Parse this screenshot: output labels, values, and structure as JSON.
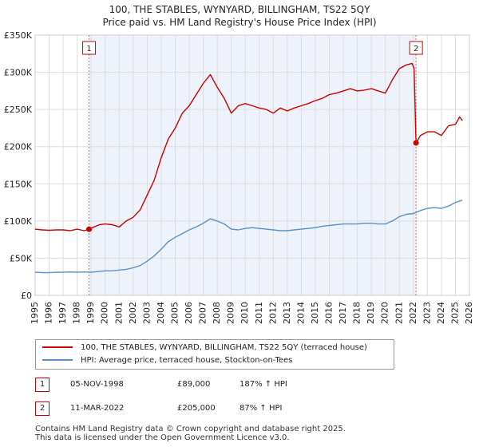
{
  "title_line1": "100, THE STABLES, WYNYARD, BILLINGHAM, TS22 5QY",
  "title_line2": "Price paid vs. HM Land Registry's House Price Index (HPI)",
  "chart_data": {
    "type": "line",
    "title": "100, THE STABLES, WYNYARD, BILLINGHAM, TS22 5QY — Price paid vs. HM Land Registry's House Price Index (HPI)",
    "xlim": [
      1995,
      2026
    ],
    "ylim": [
      0,
      350000
    ],
    "x_ticks": [
      "1995",
      "1996",
      "1997",
      "1998",
      "1999",
      "2000",
      "2001",
      "2002",
      "2003",
      "2004",
      "2005",
      "2006",
      "2007",
      "2008",
      "2009",
      "2010",
      "2011",
      "2012",
      "2013",
      "2014",
      "2015",
      "2016",
      "2017",
      "2018",
      "2019",
      "2020",
      "2021",
      "2022",
      "2023",
      "2024",
      "2025",
      "2026"
    ],
    "y_ticks": [
      {
        "value": 0,
        "label": "£0"
      },
      {
        "value": 50000,
        "label": "£50K"
      },
      {
        "value": 100000,
        "label": "£100K"
      },
      {
        "value": 150000,
        "label": "£150K"
      },
      {
        "value": 200000,
        "label": "£200K"
      },
      {
        "value": 250000,
        "label": "£250K"
      },
      {
        "value": 300000,
        "label": "£300K"
      },
      {
        "value": 350000,
        "label": "£350K"
      }
    ],
    "shade_range": [
      1998.85,
      2022.19
    ],
    "series": [
      {
        "name": "100, THE STABLES, WYNYARD, BILLINGHAM, TS22 5QY (terraced house)",
        "color": "#cc0000",
        "points": [
          [
            1995.0,
            89000
          ],
          [
            1995.5,
            88000
          ],
          [
            1996.0,
            87500
          ],
          [
            1996.5,
            88000
          ],
          [
            1997.0,
            88000
          ],
          [
            1997.5,
            87000
          ],
          [
            1998.0,
            89000
          ],
          [
            1998.5,
            87000
          ],
          [
            1998.85,
            89000
          ],
          [
            1999.2,
            92000
          ],
          [
            1999.6,
            95000
          ],
          [
            2000.0,
            96000
          ],
          [
            2000.5,
            95000
          ],
          [
            2001.0,
            92000
          ],
          [
            2001.5,
            100000
          ],
          [
            2002.0,
            105000
          ],
          [
            2002.5,
            115000
          ],
          [
            2003.0,
            135000
          ],
          [
            2003.5,
            155000
          ],
          [
            2004.0,
            185000
          ],
          [
            2004.5,
            210000
          ],
          [
            2005.0,
            225000
          ],
          [
            2005.5,
            245000
          ],
          [
            2006.0,
            255000
          ],
          [
            2006.5,
            270000
          ],
          [
            2007.0,
            285000
          ],
          [
            2007.5,
            297000
          ],
          [
            2008.0,
            280000
          ],
          [
            2008.5,
            265000
          ],
          [
            2009.0,
            245000
          ],
          [
            2009.5,
            255000
          ],
          [
            2010.0,
            258000
          ],
          [
            2010.5,
            255000
          ],
          [
            2011.0,
            252000
          ],
          [
            2011.5,
            250000
          ],
          [
            2012.0,
            245000
          ],
          [
            2012.5,
            252000
          ],
          [
            2013.0,
            248000
          ],
          [
            2013.5,
            252000
          ],
          [
            2014.0,
            255000
          ],
          [
            2014.5,
            258000
          ],
          [
            2015.0,
            262000
          ],
          [
            2015.5,
            265000
          ],
          [
            2016.0,
            270000
          ],
          [
            2016.5,
            272000
          ],
          [
            2017.0,
            275000
          ],
          [
            2017.5,
            278000
          ],
          [
            2018.0,
            275000
          ],
          [
            2018.5,
            276000
          ],
          [
            2019.0,
            278000
          ],
          [
            2019.5,
            275000
          ],
          [
            2020.0,
            272000
          ],
          [
            2020.5,
            290000
          ],
          [
            2021.0,
            305000
          ],
          [
            2021.5,
            310000
          ],
          [
            2021.9,
            312000
          ],
          [
            2022.05,
            305000
          ],
          [
            2022.19,
            205000
          ],
          [
            2022.5,
            215000
          ],
          [
            2023.0,
            220000
          ],
          [
            2023.5,
            220000
          ],
          [
            2024.0,
            215000
          ],
          [
            2024.5,
            228000
          ],
          [
            2025.0,
            230000
          ],
          [
            2025.3,
            240000
          ],
          [
            2025.5,
            235000
          ]
        ]
      },
      {
        "name": "HPI: Average price, terraced house, Stockton-on-Tees",
        "color": "#5b8fc7",
        "points": [
          [
            1995.0,
            31000
          ],
          [
            1995.5,
            30500
          ],
          [
            1996.0,
            30500
          ],
          [
            1996.5,
            31000
          ],
          [
            1997.0,
            31000
          ],
          [
            1997.5,
            31500
          ],
          [
            1998.0,
            31000
          ],
          [
            1998.5,
            31500
          ],
          [
            1999.0,
            31000
          ],
          [
            1999.5,
            32000
          ],
          [
            2000.0,
            33000
          ],
          [
            2000.5,
            33000
          ],
          [
            2001.0,
            34000
          ],
          [
            2001.5,
            35000
          ],
          [
            2002.0,
            37000
          ],
          [
            2002.5,
            40000
          ],
          [
            2003.0,
            46000
          ],
          [
            2003.5,
            53000
          ],
          [
            2004.0,
            62000
          ],
          [
            2004.5,
            72000
          ],
          [
            2005.0,
            78000
          ],
          [
            2005.5,
            83000
          ],
          [
            2006.0,
            88000
          ],
          [
            2006.5,
            92000
          ],
          [
            2007.0,
            97000
          ],
          [
            2007.5,
            103000
          ],
          [
            2008.0,
            100000
          ],
          [
            2008.5,
            96000
          ],
          [
            2009.0,
            89000
          ],
          [
            2009.5,
            88000
          ],
          [
            2010.0,
            90000
          ],
          [
            2010.5,
            91000
          ],
          [
            2011.0,
            90000
          ],
          [
            2011.5,
            89000
          ],
          [
            2012.0,
            88000
          ],
          [
            2012.5,
            87000
          ],
          [
            2013.0,
            87000
          ],
          [
            2013.5,
            88000
          ],
          [
            2014.0,
            89000
          ],
          [
            2014.5,
            90000
          ],
          [
            2015.0,
            91000
          ],
          [
            2015.5,
            93000
          ],
          [
            2016.0,
            94000
          ],
          [
            2016.5,
            95000
          ],
          [
            2017.0,
            96000
          ],
          [
            2017.5,
            96000
          ],
          [
            2018.0,
            96000
          ],
          [
            2018.5,
            97000
          ],
          [
            2019.0,
            97000
          ],
          [
            2019.5,
            96000
          ],
          [
            2020.0,
            96000
          ],
          [
            2020.5,
            100000
          ],
          [
            2021.0,
            106000
          ],
          [
            2021.5,
            109000
          ],
          [
            2022.0,
            110000
          ],
          [
            2022.5,
            114000
          ],
          [
            2023.0,
            117000
          ],
          [
            2023.5,
            118000
          ],
          [
            2024.0,
            117000
          ],
          [
            2024.5,
            120000
          ],
          [
            2025.0,
            125000
          ],
          [
            2025.5,
            128000
          ]
        ]
      }
    ],
    "sales": [
      {
        "marker": "1",
        "x": 1998.85,
        "y": 89000,
        "date": "05-NOV-1998",
        "price": "£89,000",
        "hpi": "187% ↑ HPI"
      },
      {
        "marker": "2",
        "x": 2022.19,
        "y": 205000,
        "date": "11-MAR-2022",
        "price": "£205,000",
        "hpi": "87% ↑ HPI"
      }
    ]
  },
  "legend": {
    "red_label": "100, THE STABLES, WYNYARD, BILLINGHAM, TS22 5QY (terraced house)",
    "blue_label": "HPI: Average price, terraced house, Stockton-on-Tees",
    "red_color": "#cc0000",
    "blue_color": "#5b8fc7"
  },
  "footer": {
    "line1": "Contains HM Land Registry data © Crown copyright and database right 2025.",
    "line2": "This data is licensed under the Open Government Licence v3.0."
  }
}
